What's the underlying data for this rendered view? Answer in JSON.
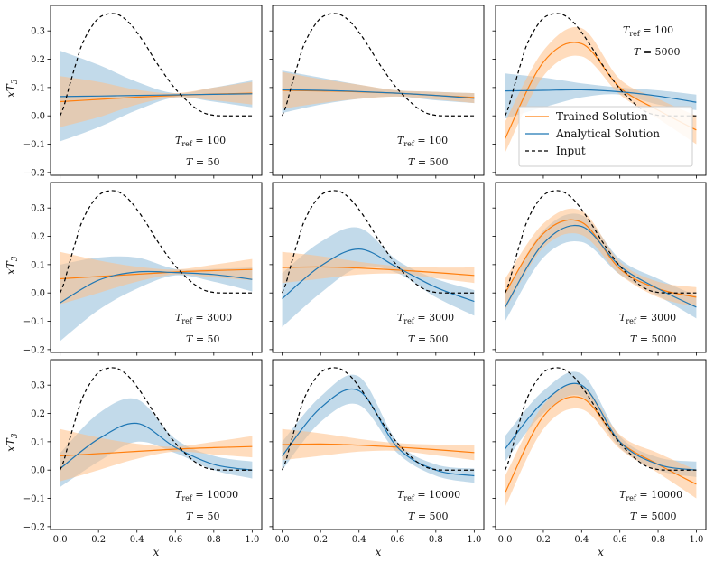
{
  "figure": {
    "ylabel": "xT",
    "ylabel_sub": "3",
    "xlabel": "x"
  },
  "legend": {
    "panel_index": 2,
    "entries": [
      {
        "label": "Trained Solution",
        "color": "#ff7f0e",
        "style": "solid"
      },
      {
        "label": "Analytical Solution",
        "color": "#1f77b4",
        "style": "solid"
      },
      {
        "label": "Input",
        "color": "#000000",
        "style": "dashed"
      }
    ]
  },
  "annotation_format": {
    "tref_lhs": "T",
    "tref_sub": "ref",
    "t_lhs": "T"
  },
  "colors": {
    "trained": "#ff7f0e",
    "trained_band": "#ffbf86",
    "analytical": "#1f77b4",
    "analytical_band": "#8fbbd9",
    "input": "#000000"
  },
  "chart_data": [
    {
      "type": "line",
      "T_ref": "100",
      "T": "50",
      "x": [
        0,
        0.2,
        0.4,
        0.6,
        0.8,
        1.0
      ],
      "xlim": [
        -0.05,
        1.05
      ],
      "ylim": [
        -0.21,
        0.39
      ],
      "xticks": [
        "0.0",
        "0.2",
        "0.4",
        "0.6",
        "0.8",
        "1.0"
      ],
      "yticks": [
        "−0.2",
        "−0.1",
        "0.0",
        "0.1",
        "0.2",
        "0.3"
      ],
      "series": [
        {
          "name": "Input",
          "values": [
            0.0,
            0.25,
            0.27,
            0.07,
            0.0,
            0.0
          ]
        },
        {
          "name": "Trained Solution",
          "values": [
            0.05,
            0.058,
            0.066,
            0.072,
            0.077,
            0.08
          ],
          "lower": [
            -0.04,
            -0.005,
            0.04,
            0.065,
            0.055,
            0.04
          ],
          "upper": [
            0.14,
            0.12,
            0.092,
            0.08,
            0.1,
            0.12
          ]
        },
        {
          "name": "Analytical Solution",
          "values": [
            0.068,
            0.07,
            0.072,
            0.074,
            0.076,
            0.078
          ],
          "lower": [
            -0.09,
            -0.04,
            0.02,
            0.065,
            0.05,
            0.03
          ],
          "upper": [
            0.23,
            0.18,
            0.12,
            0.08,
            0.1,
            0.125
          ]
        }
      ]
    },
    {
      "type": "line",
      "T_ref": "100",
      "T": "500",
      "x": [
        0,
        0.2,
        0.4,
        0.6,
        0.8,
        1.0
      ],
      "xlim": [
        -0.05,
        1.05
      ],
      "ylim": [
        -0.21,
        0.39
      ],
      "xticks": [
        "0.0",
        "0.2",
        "0.4",
        "0.6",
        "0.8",
        "1.0"
      ],
      "yticks": [
        "−0.2",
        "−0.1",
        "0.0",
        "0.1",
        "0.2",
        "0.3"
      ],
      "series": [
        {
          "name": "Input",
          "values": [
            0.0,
            0.25,
            0.27,
            0.07,
            0.0,
            0.0
          ]
        },
        {
          "name": "Trained Solution",
          "values": [
            0.09,
            0.088,
            0.085,
            0.08,
            0.072,
            0.065
          ],
          "lower": [
            0.025,
            0.045,
            0.06,
            0.068,
            0.058,
            0.045
          ],
          "upper": [
            0.155,
            0.13,
            0.11,
            0.09,
            0.085,
            0.08
          ]
        },
        {
          "name": "Analytical Solution",
          "values": [
            0.092,
            0.09,
            0.086,
            0.08,
            0.072,
            0.062
          ],
          "lower": [
            0.01,
            0.04,
            0.06,
            0.068,
            0.055,
            0.045
          ],
          "upper": [
            0.16,
            0.135,
            0.11,
            0.09,
            0.085,
            0.08
          ]
        }
      ]
    },
    {
      "type": "line",
      "T_ref": "100",
      "T": "5000",
      "x": [
        0,
        0.2,
        0.4,
        0.6,
        0.8,
        1.0
      ],
      "xlim": [
        -0.05,
        1.05
      ],
      "ylim": [
        -0.21,
        0.39
      ],
      "xticks": [
        "0.0",
        "0.2",
        "0.4",
        "0.6",
        "0.8",
        "1.0"
      ],
      "yticks": [
        "−0.2",
        "−0.1",
        "0.0",
        "0.1",
        "0.2",
        "0.3"
      ],
      "series": [
        {
          "name": "Input",
          "values": [
            0.0,
            0.25,
            0.27,
            0.07,
            0.0,
            0.0
          ]
        },
        {
          "name": "Trained Solution",
          "values": [
            -0.08,
            0.19,
            0.255,
            0.1,
            0.02,
            -0.05
          ],
          "lower": [
            -0.13,
            0.14,
            0.21,
            0.075,
            -0.01,
            -0.1
          ],
          "upper": [
            -0.02,
            0.23,
            0.31,
            0.13,
            0.06,
            0.0
          ]
        },
        {
          "name": "Analytical Solution",
          "values": [
            0.088,
            0.09,
            0.092,
            0.085,
            0.07,
            0.048
          ],
          "lower": [
            -0.01,
            0.03,
            0.065,
            0.075,
            0.04,
            0.02
          ],
          "upper": [
            0.15,
            0.135,
            0.115,
            0.1,
            0.09,
            0.075
          ]
        }
      ]
    },
    {
      "type": "line",
      "T_ref": "3000",
      "T": "50",
      "x": [
        0,
        0.2,
        0.4,
        0.6,
        0.8,
        1.0
      ],
      "xlim": [
        -0.05,
        1.05
      ],
      "ylim": [
        -0.21,
        0.39
      ],
      "xticks": [
        "0.0",
        "0.2",
        "0.4",
        "0.6",
        "0.8",
        "1.0"
      ],
      "yticks": [
        "−0.2",
        "−0.1",
        "0.0",
        "0.1",
        "0.2",
        "0.3"
      ],
      "series": [
        {
          "name": "Input",
          "values": [
            0.0,
            0.25,
            0.27,
            0.07,
            0.0,
            0.0
          ]
        },
        {
          "name": "Trained Solution",
          "values": [
            0.05,
            0.058,
            0.066,
            0.074,
            0.079,
            0.083
          ],
          "lower": [
            -0.04,
            0.0,
            0.04,
            0.065,
            0.055,
            0.045
          ],
          "upper": [
            0.145,
            0.115,
            0.093,
            0.083,
            0.1,
            0.12
          ]
        },
        {
          "name": "Analytical Solution",
          "values": [
            -0.035,
            0.045,
            0.074,
            0.072,
            0.065,
            0.048
          ],
          "lower": [
            -0.17,
            -0.06,
            0.015,
            0.062,
            0.04,
            0.005
          ],
          "upper": [
            0.1,
            0.125,
            0.125,
            0.085,
            0.085,
            0.09
          ]
        }
      ]
    },
    {
      "type": "line",
      "T_ref": "3000",
      "T": "500",
      "x": [
        0,
        0.2,
        0.4,
        0.6,
        0.8,
        1.0
      ],
      "xlim": [
        -0.05,
        1.05
      ],
      "ylim": [
        -0.21,
        0.39
      ],
      "xticks": [
        "0.0",
        "0.2",
        "0.4",
        "0.6",
        "0.8",
        "1.0"
      ],
      "yticks": [
        "−0.2",
        "−0.1",
        "0.0",
        "0.1",
        "0.2",
        "0.3"
      ],
      "series": [
        {
          "name": "Input",
          "values": [
            0.0,
            0.25,
            0.27,
            0.07,
            0.0,
            0.0
          ]
        },
        {
          "name": "Trained Solution",
          "values": [
            0.09,
            0.092,
            0.088,
            0.081,
            0.072,
            0.062
          ],
          "lower": [
            0.035,
            0.05,
            0.065,
            0.068,
            0.052,
            0.035
          ],
          "upper": [
            0.145,
            0.13,
            0.11,
            0.095,
            0.09,
            0.09
          ]
        },
        {
          "name": "Analytical Solution",
          "values": [
            -0.02,
            0.095,
            0.155,
            0.09,
            0.02,
            -0.03
          ],
          "lower": [
            -0.12,
            0.0,
            0.09,
            0.07,
            -0.015,
            -0.08
          ],
          "upper": [
            0.07,
            0.18,
            0.23,
            0.115,
            0.05,
            0.01
          ]
        }
      ]
    },
    {
      "type": "line",
      "T_ref": "3000",
      "T": "5000",
      "x": [
        0,
        0.2,
        0.4,
        0.6,
        0.8,
        1.0
      ],
      "xlim": [
        -0.05,
        1.05
      ],
      "ylim": [
        -0.21,
        0.39
      ],
      "xticks": [
        "0.0",
        "0.2",
        "0.4",
        "0.6",
        "0.8",
        "1.0"
      ],
      "yticks": [
        "−0.2",
        "−0.1",
        "0.0",
        "0.1",
        "0.2",
        "0.3"
      ],
      "series": [
        {
          "name": "Input",
          "values": [
            0.0,
            0.25,
            0.27,
            0.07,
            0.0,
            0.0
          ]
        },
        {
          "name": "Trained Solution",
          "values": [
            0.0,
            0.21,
            0.25,
            0.085,
            0.015,
            -0.015
          ],
          "lower": [
            -0.06,
            0.16,
            0.205,
            0.065,
            -0.015,
            -0.05
          ],
          "upper": [
            0.05,
            0.245,
            0.29,
            0.11,
            0.04,
            0.02
          ]
        },
        {
          "name": "Analytical Solution",
          "values": [
            -0.05,
            0.175,
            0.235,
            0.095,
            0.015,
            -0.05
          ],
          "lower": [
            -0.1,
            0.125,
            0.18,
            0.065,
            -0.01,
            -0.09
          ],
          "upper": [
            0.0,
            0.22,
            0.275,
            0.12,
            0.05,
            -0.01
          ]
        }
      ]
    },
    {
      "type": "line",
      "T_ref": "10000",
      "T": "50",
      "x": [
        0,
        0.2,
        0.4,
        0.6,
        0.8,
        1.0
      ],
      "xlim": [
        -0.05,
        1.05
      ],
      "ylim": [
        -0.21,
        0.39
      ],
      "xticks": [
        "0.0",
        "0.2",
        "0.4",
        "0.6",
        "0.8",
        "1.0"
      ],
      "yticks": [
        "−0.2",
        "−0.1",
        "0.0",
        "0.1",
        "0.2",
        "0.3"
      ],
      "series": [
        {
          "name": "Input",
          "values": [
            0.0,
            0.25,
            0.27,
            0.07,
            0.0,
            0.0
          ]
        },
        {
          "name": "Trained Solution",
          "values": [
            0.05,
            0.058,
            0.066,
            0.074,
            0.079,
            0.083
          ],
          "lower": [
            -0.04,
            0.0,
            0.04,
            0.065,
            0.055,
            0.045
          ],
          "upper": [
            0.145,
            0.115,
            0.093,
            0.083,
            0.1,
            0.12
          ]
        },
        {
          "name": "Analytical Solution",
          "values": [
            0.005,
            0.11,
            0.165,
            0.08,
            0.02,
            0.0
          ],
          "lower": [
            -0.06,
            0.03,
            0.1,
            0.06,
            0.0,
            -0.03
          ],
          "upper": [
            0.06,
            0.2,
            0.25,
            0.11,
            0.05,
            0.03
          ]
        }
      ]
    },
    {
      "type": "line",
      "T_ref": "10000",
      "T": "500",
      "x": [
        0,
        0.2,
        0.4,
        0.6,
        0.8,
        1.0
      ],
      "xlim": [
        -0.05,
        1.05
      ],
      "ylim": [
        -0.21,
        0.39
      ],
      "xticks": [
        "0.0",
        "0.2",
        "0.4",
        "0.6",
        "0.8",
        "1.0"
      ],
      "yticks": [
        "−0.2",
        "−0.1",
        "0.0",
        "0.1",
        "0.2",
        "0.3"
      ],
      "series": [
        {
          "name": "Input",
          "values": [
            0.0,
            0.25,
            0.27,
            0.07,
            0.0,
            0.0
          ]
        },
        {
          "name": "Trained Solution",
          "values": [
            0.09,
            0.092,
            0.088,
            0.081,
            0.072,
            0.062
          ],
          "lower": [
            0.035,
            0.05,
            0.065,
            0.068,
            0.052,
            0.035
          ],
          "upper": [
            0.145,
            0.13,
            0.11,
            0.095,
            0.09,
            0.09
          ]
        },
        {
          "name": "Analytical Solution",
          "values": [
            0.05,
            0.22,
            0.28,
            0.08,
            0.0,
            -0.02
          ],
          "lower": [
            0.0,
            0.17,
            0.23,
            0.06,
            -0.02,
            -0.045
          ],
          "upper": [
            0.1,
            0.26,
            0.33,
            0.1,
            0.02,
            0.005
          ]
        }
      ]
    },
    {
      "type": "line",
      "T_ref": "10000",
      "T": "5000",
      "x": [
        0,
        0.2,
        0.4,
        0.6,
        0.8,
        1.0
      ],
      "xlim": [
        -0.05,
        1.05
      ],
      "ylim": [
        -0.21,
        0.39
      ],
      "xticks": [
        "0.0",
        "0.2",
        "0.4",
        "0.6",
        "0.8",
        "1.0"
      ],
      "yticks": [
        "−0.2",
        "−0.1",
        "0.0",
        "0.1",
        "0.2",
        "0.3"
      ],
      "series": [
        {
          "name": "Input",
          "values": [
            0.0,
            0.25,
            0.27,
            0.07,
            0.0,
            0.0
          ]
        },
        {
          "name": "Trained Solution",
          "values": [
            -0.08,
            0.19,
            0.255,
            0.1,
            0.02,
            -0.05
          ],
          "lower": [
            -0.13,
            0.145,
            0.215,
            0.075,
            -0.01,
            -0.1
          ],
          "upper": [
            -0.02,
            0.23,
            0.3,
            0.125,
            0.06,
            0.0
          ]
        },
        {
          "name": "Analytical Solution",
          "values": [
            0.075,
            0.24,
            0.3,
            0.1,
            0.02,
            0.0
          ],
          "lower": [
            0.03,
            0.2,
            0.26,
            0.08,
            0.0,
            -0.025
          ],
          "upper": [
            0.12,
            0.28,
            0.34,
            0.12,
            0.045,
            0.03
          ]
        }
      ]
    }
  ]
}
